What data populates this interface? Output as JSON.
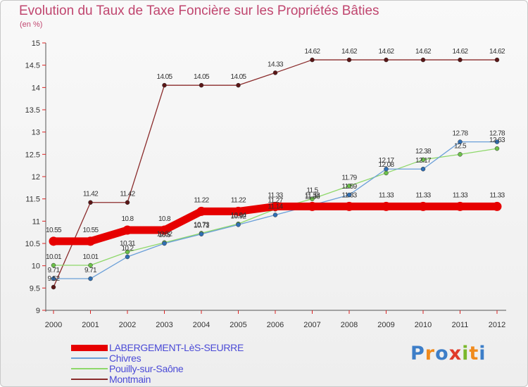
{
  "title": "Evolution du Taux de Taxe Foncière sur les Propriétés Bâties",
  "unit": "(en %)",
  "logo": {
    "letters": [
      "P",
      "r",
      "o",
      "x",
      "i",
      "t",
      "i"
    ],
    "colors": [
      "#3d7ec8",
      "#f08a1c",
      "#3d7ec8",
      "#e03a2a",
      "#7ab82c",
      "#f08a1c",
      "#3d7ec8"
    ]
  },
  "chart_data": {
    "type": "line",
    "x": [
      "2000",
      "2001",
      "2002",
      "2003",
      "2004",
      "2005",
      "2006",
      "2007",
      "2008",
      "2009",
      "2010",
      "2011",
      "2012"
    ],
    "ylim": [
      9,
      15
    ],
    "yticks": [
      "9",
      "9.5",
      "10",
      "10.5",
      "11",
      "11.5",
      "12",
      "12.5",
      "13",
      "13.5",
      "14",
      "14.5",
      "15"
    ],
    "grid": false,
    "legend_position": "bottom-left",
    "series": [
      {
        "name": "LABERGEMENT-LèS-SEURRE",
        "color": "#e60000",
        "marker": "#e60000",
        "width": 11,
        "values": [
          10.55,
          10.55,
          10.8,
          10.8,
          11.22,
          11.22,
          11.33,
          11.33,
          11.33,
          11.33,
          11.33,
          11.33,
          11.33
        ],
        "labels": [
          "10.55",
          "10.55",
          "10.8",
          "10.8",
          "11.22",
          "11.22",
          "11.33",
          "11.33",
          "11.33",
          "11.33",
          "11.33",
          "11.33",
          "11.33"
        ]
      },
      {
        "name": "Chivres",
        "color": "#6a9fd8",
        "marker": "#2f6fb5",
        "width": 1.3,
        "values": [
          9.71,
          9.71,
          10.2,
          10.5,
          10.71,
          10.92,
          11.14,
          11.36,
          11.59,
          12.17,
          12.17,
          12.78,
          12.78
        ],
        "labels": [
          "9.71",
          "9.71",
          "10.2",
          "10.5",
          "10.71",
          "10.92",
          "11.14",
          "11.36",
          "11.59",
          "12.17",
          "12.17",
          "12.78",
          "12.78"
        ]
      },
      {
        "name": "Pouilly-sur-Saône",
        "color": "#8ed86a",
        "marker": "#6cc04a",
        "width": 1.3,
        "values": [
          10.01,
          10.01,
          10.31,
          10.52,
          10.73,
          10.94,
          11.27,
          11.5,
          11.79,
          12.08,
          12.38,
          12.5,
          12.63
        ],
        "labels": [
          "10.01",
          "10.01",
          "10.31",
          "10.52",
          "10.73",
          "10.94",
          "11.27",
          "11.5",
          "11.79",
          "12.08",
          "12.38",
          "12.5",
          "12.63"
        ]
      },
      {
        "name": "Montmain",
        "color": "#8a2b2b",
        "marker": "#5a1616",
        "width": 1.3,
        "values": [
          9.52,
          11.42,
          11.42,
          14.05,
          14.05,
          14.05,
          14.33,
          14.62,
          14.62,
          14.62,
          14.62,
          14.62,
          14.62
        ],
        "labels": [
          "9.52",
          "11.42",
          "11.42",
          "14.05",
          "14.05",
          "14.05",
          "14.33",
          "14.62",
          "14.62",
          "14.62",
          "14.62",
          "14.62",
          "14.62"
        ]
      }
    ]
  }
}
